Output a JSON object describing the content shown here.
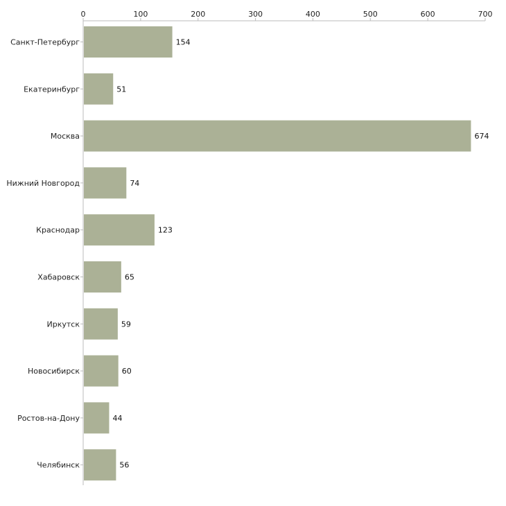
{
  "chart_data": {
    "type": "bar",
    "orientation": "horizontal",
    "title": "",
    "xlabel": "",
    "ylabel": "",
    "xlim": [
      0,
      700
    ],
    "ticks": [
      0,
      100,
      200,
      300,
      400,
      500,
      600,
      700
    ],
    "categories": [
      "Санкт-Петербург",
      "Екатеринбург",
      "Москва",
      "Нижний Новгород",
      "Краснодар",
      "Хабаровск",
      "Иркутск",
      "Новосибирск",
      "Ростов-на-Дону",
      "Челябинск"
    ],
    "values": [
      154,
      51,
      674,
      74,
      123,
      65,
      59,
      60,
      44,
      56
    ],
    "bar_color": "#abb196",
    "axis_color": "#bbbbbb",
    "grid": false,
    "axis_position": "top"
  }
}
